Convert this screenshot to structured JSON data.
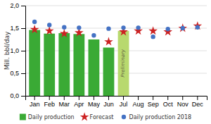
{
  "chart_data": {
    "type": "bar",
    "categories": [
      "Jan",
      "Feb",
      "Mar",
      "Apr",
      "May",
      "Jun",
      "Jul",
      "Aug",
      "Sep",
      "Oct",
      "Nov",
      "Dec"
    ],
    "series": [
      {
        "name": "Daily production",
        "type": "bar",
        "color": "#3aaa35",
        "colors": [
          "#3aaa35",
          "#3aaa35",
          "#3aaa35",
          "#3aaa35",
          "#3aaa35",
          "#3aaa35",
          "#b8d96e",
          null,
          null,
          null,
          null,
          null
        ],
        "values": [
          1.46,
          1.38,
          1.39,
          1.37,
          1.25,
          1.07,
          1.44,
          null,
          null,
          null,
          null,
          null
        ]
      },
      {
        "name": "Forecast",
        "type": "scatter",
        "color": "#cc2222",
        "marker": "star",
        "values": [
          1.47,
          1.44,
          1.38,
          1.4,
          null,
          1.2,
          1.42,
          1.44,
          1.44,
          1.42,
          1.5,
          1.55
        ]
      },
      {
        "name": "Daily production 2018",
        "type": "scatter",
        "color": "#4472c4",
        "marker": "circle",
        "values": [
          1.64,
          1.57,
          1.52,
          1.51,
          1.34,
          1.49,
          1.51,
          1.51,
          1.31,
          1.48,
          1.5,
          1.52
        ]
      }
    ],
    "ylabel": "Mill. bbl/day",
    "ylim": [
      0.0,
      2.0
    ],
    "yticks": [
      {
        "value": 0.0,
        "label": "0,0"
      },
      {
        "value": 0.5,
        "label": "0,5"
      },
      {
        "value": 1.0,
        "label": "1,0"
      },
      {
        "value": 1.5,
        "label": "1,5"
      },
      {
        "value": 2.0,
        "label": "2,0"
      }
    ],
    "annotations": [
      {
        "text": "Preliminary",
        "x": "Jul",
        "y": 0.72,
        "color": "#666644"
      }
    ],
    "grid": true,
    "legend": "bottom"
  }
}
